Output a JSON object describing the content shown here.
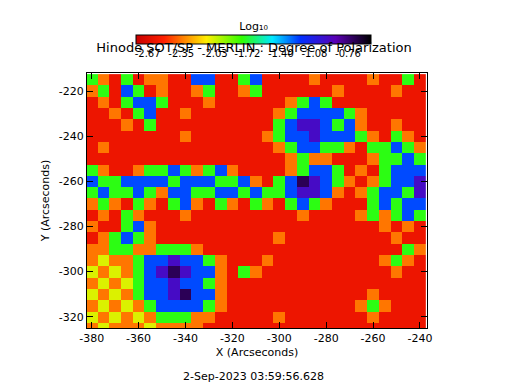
{
  "chart_data": {
    "type": "heatmap",
    "title": "Hinode SOT/SP - MERLIN : Degree of Polarization",
    "xlabel": "X (Arcseconds)",
    "ylabel": "Y (Arcseconds)",
    "annotations": [
      "2-Sep-2023 03:59:56.628"
    ],
    "xlim": [
      -382,
      -237
    ],
    "ylim": [
      -325,
      -212
    ],
    "xticks": [
      -380,
      -360,
      -340,
      -320,
      -300,
      -280,
      -260,
      -240
    ],
    "yticks": [
      -320,
      -300,
      -280,
      -260,
      -240,
      -220
    ],
    "colorbar": {
      "title": "Log₁₀",
      "range": [
        -2.78,
        -0.54
      ],
      "ticks": [
        -2.67,
        -2.35,
        -2.03,
        -1.72,
        {
          "value": -1.4,
          "label": "-1.40"
        },
        -1.08,
        -0.76
      ]
    },
    "x": [
      -380,
      -375,
      -370,
      -365,
      -360,
      -355,
      -350,
      -345,
      -340,
      -335,
      -330,
      -325,
      -320,
      -315,
      -310,
      -305,
      -300,
      -295,
      -290,
      -285,
      -280,
      -275,
      -270,
      -265,
      -260,
      -255,
      -250,
      -245,
      -240
    ],
    "y": [
      -325,
      -320,
      -315,
      -310,
      -305,
      -300,
      -295,
      -290,
      -285,
      -280,
      -275,
      -270,
      -265,
      -260,
      -255,
      -250,
      -245,
      -240,
      -235,
      -230,
      -225,
      -220,
      -215
    ],
    "z": [
      [
        -2.35,
        -2.05,
        -2.35,
        -2.35,
        -2.35,
        -2.05,
        -2.35,
        -2.35,
        -2.35,
        -2.35,
        -2.6,
        -2.6,
        -2.6,
        -2.6,
        -2.6,
        -2.6,
        -2.6,
        -2.6,
        -2.6,
        -2.6,
        -2.6,
        -2.6,
        -2.6,
        -2.6,
        -2.6,
        -2.6,
        -2.6,
        -2.6,
        -2.6
      ],
      [
        -2.05,
        -2.35,
        -2.05,
        -2.35,
        -2.05,
        -2.35,
        -1.75,
        -1.75,
        -1.75,
        -2.35,
        -2.35,
        -2.6,
        -2.6,
        -2.6,
        -2.6,
        -2.6,
        -2.35,
        -2.6,
        -2.6,
        -2.6,
        -2.6,
        -2.6,
        -2.6,
        -2.6,
        -2.35,
        -2.6,
        -2.6,
        -2.6,
        -2.6
      ],
      [
        -2.35,
        -2.05,
        -2.35,
        -2.05,
        -2.35,
        -1.75,
        -1.25,
        -1.25,
        -1.25,
        -1.25,
        -1.75,
        -2.35,
        -2.6,
        -2.6,
        -2.6,
        -2.6,
        -2.6,
        -2.6,
        -2.6,
        -2.6,
        -2.6,
        -2.6,
        -2.6,
        -2.35,
        -1.75,
        -2.35,
        -2.6,
        -2.6,
        -2.6
      ],
      [
        -2.05,
        -2.35,
        -2.05,
        -2.35,
        -1.75,
        -1.25,
        -1.25,
        -0.95,
        -0.7,
        -1.25,
        -1.25,
        -2.35,
        -2.6,
        -2.6,
        -2.6,
        -2.6,
        -2.6,
        -2.6,
        -2.6,
        -2.6,
        -2.6,
        -2.6,
        -2.6,
        -2.6,
        -2.35,
        -2.6,
        -2.6,
        -2.6,
        -2.6
      ],
      [
        -2.35,
        -2.05,
        -2.35,
        -2.05,
        -1.75,
        -1.25,
        -1.25,
        -0.95,
        -1.25,
        -1.25,
        -1.75,
        -2.35,
        -2.6,
        -2.6,
        -2.6,
        -2.6,
        -2.6,
        -2.6,
        -2.6,
        -2.6,
        -2.6,
        -2.6,
        -2.6,
        -2.6,
        -2.6,
        -2.6,
        -2.6,
        -2.6,
        -2.6
      ],
      [
        -2.05,
        -2.35,
        -2.05,
        -2.35,
        -1.75,
        -1.25,
        -0.95,
        -0.7,
        -0.95,
        -1.25,
        -1.25,
        -2.35,
        -2.6,
        -1.75,
        -2.35,
        -2.6,
        -2.6,
        -2.6,
        -2.6,
        -2.6,
        -2.6,
        -2.6,
        -2.6,
        -2.6,
        -2.6,
        -2.6,
        -2.35,
        -2.6,
        -2.6
      ],
      [
        -2.35,
        -2.05,
        -2.35,
        -2.35,
        -1.75,
        -1.25,
        -1.25,
        -0.95,
        -1.25,
        -1.25,
        -1.75,
        -2.35,
        -2.6,
        -2.6,
        -2.6,
        -2.35,
        -2.6,
        -2.6,
        -2.6,
        -2.6,
        -2.6,
        -2.6,
        -2.6,
        -2.6,
        -2.6,
        -2.35,
        -1.75,
        -2.35,
        -2.6
      ],
      [
        -2.35,
        -2.35,
        -1.75,
        -1.75,
        -2.35,
        -2.35,
        -1.75,
        -1.75,
        -1.75,
        -2.35,
        -2.6,
        -2.6,
        -2.6,
        -2.6,
        -2.6,
        -2.6,
        -2.6,
        -2.6,
        -2.6,
        -2.6,
        -2.6,
        -2.6,
        -2.6,
        -2.6,
        -2.6,
        -2.6,
        -2.6,
        -1.75,
        -2.35
      ],
      [
        -2.6,
        -2.35,
        -1.75,
        -1.25,
        -1.75,
        -2.35,
        -2.6,
        -2.6,
        -2.6,
        -2.6,
        -2.6,
        -2.6,
        -2.6,
        -2.6,
        -2.6,
        -2.6,
        -2.35,
        -2.6,
        -2.6,
        -2.6,
        -2.6,
        -2.6,
        -2.6,
        -2.6,
        -2.6,
        -2.6,
        -2.35,
        -2.6,
        -2.6
      ],
      [
        -2.35,
        -2.6,
        -2.6,
        -1.75,
        -1.25,
        -2.35,
        -2.6,
        -2.6,
        -2.6,
        -2.6,
        -2.6,
        -2.6,
        -2.6,
        -2.6,
        -2.6,
        -2.6,
        -2.6,
        -2.6,
        -2.6,
        -2.6,
        -2.6,
        -2.6,
        -2.6,
        -2.6,
        -2.6,
        -2.35,
        -2.6,
        -2.35,
        -2.6
      ],
      [
        -2.6,
        -2.35,
        -2.6,
        -1.75,
        -2.35,
        -2.6,
        -2.6,
        -2.6,
        -2.35,
        -2.6,
        -2.6,
        -2.6,
        -2.6,
        -2.6,
        -2.6,
        -2.6,
        -2.6,
        -2.6,
        -2.35,
        -2.6,
        -2.6,
        -2.6,
        -2.6,
        -2.35,
        -1.75,
        -2.35,
        -1.75,
        -1.25,
        -1.75
      ],
      [
        -2.35,
        -1.75,
        -2.35,
        -2.6,
        -1.75,
        -2.35,
        -2.6,
        -1.75,
        -1.25,
        -2.35,
        -2.6,
        -1.75,
        -2.35,
        -2.6,
        -1.75,
        -2.35,
        -2.6,
        -1.75,
        -1.25,
        -1.75,
        -2.35,
        -2.6,
        -2.6,
        -2.6,
        -1.75,
        -1.25,
        -1.75,
        -1.25,
        -1.25
      ],
      [
        -1.75,
        -1.25,
        -1.75,
        -1.75,
        -1.25,
        -1.75,
        -2.35,
        -1.25,
        -1.25,
        -1.75,
        -1.75,
        -1.25,
        -1.25,
        -1.75,
        -1.25,
        -1.75,
        -1.75,
        -1.25,
        -0.95,
        -0.95,
        -1.25,
        -2.35,
        -2.6,
        -2.35,
        -1.75,
        -1.25,
        -1.25,
        -1.75,
        -0.95
      ],
      [
        -1.25,
        -1.75,
        -1.75,
        -1.25,
        -1.25,
        -1.25,
        -1.25,
        -1.75,
        -1.25,
        -1.25,
        -1.25,
        -1.75,
        -1.75,
        -1.25,
        -2.35,
        -2.6,
        -1.75,
        -1.25,
        -0.7,
        -0.95,
        -1.25,
        -1.75,
        -2.35,
        -2.6,
        -2.35,
        -1.75,
        -1.25,
        -1.25,
        -0.95
      ],
      [
        -1.75,
        -2.35,
        -2.6,
        -2.6,
        -2.35,
        -1.75,
        -1.75,
        -1.25,
        -1.75,
        -2.35,
        -1.75,
        -1.25,
        -2.35,
        -2.6,
        -2.6,
        -2.6,
        -2.6,
        -2.35,
        -1.75,
        -1.25,
        -1.25,
        -1.75,
        -2.6,
        -2.35,
        -2.6,
        -1.75,
        -1.25,
        -1.25,
        -1.25
      ],
      [
        -2.6,
        -2.6,
        -2.6,
        -2.6,
        -2.6,
        -2.6,
        -2.6,
        -2.6,
        -2.6,
        -2.6,
        -2.6,
        -2.6,
        -2.6,
        -2.6,
        -2.6,
        -2.6,
        -2.6,
        -2.35,
        -1.75,
        -2.35,
        -2.35,
        -2.6,
        -2.6,
        -2.6,
        -2.35,
        -1.75,
        -1.75,
        -1.25,
        -1.75
      ],
      [
        -2.6,
        -2.35,
        -2.6,
        -2.6,
        -2.6,
        -2.6,
        -2.6,
        -2.6,
        -2.6,
        -2.6,
        -2.6,
        -2.6,
        -2.6,
        -2.6,
        -2.6,
        -2.6,
        -2.35,
        -1.75,
        -1.25,
        -1.25,
        -1.75,
        -1.75,
        -2.35,
        -2.6,
        -1.75,
        -1.75,
        -1.25,
        -1.75,
        -2.35
      ],
      [
        -2.6,
        -2.6,
        -2.6,
        -2.6,
        -2.6,
        -2.6,
        -2.6,
        -2.6,
        -2.35,
        -2.6,
        -2.6,
        -2.6,
        -2.6,
        -2.6,
        -2.6,
        -2.35,
        -1.75,
        -1.25,
        -1.25,
        -0.95,
        -1.25,
        -1.25,
        -1.25,
        -1.75,
        -2.35,
        -2.6,
        -1.75,
        -2.35,
        -2.6
      ],
      [
        -2.6,
        -2.6,
        -2.6,
        -2.35,
        -2.6,
        -1.75,
        -2.6,
        -2.6,
        -2.6,
        -2.6,
        -2.6,
        -2.6,
        -2.6,
        -2.6,
        -2.6,
        -2.6,
        -1.75,
        -1.25,
        -0.95,
        -0.95,
        -1.25,
        -1.75,
        -1.25,
        -2.35,
        -2.6,
        -2.6,
        -2.35,
        -2.6,
        -2.6
      ],
      [
        -2.6,
        -2.6,
        -2.35,
        -2.6,
        -1.75,
        -1.25,
        -2.6,
        -2.6,
        -2.35,
        -2.6,
        -2.6,
        -2.6,
        -2.6,
        -2.6,
        -2.6,
        -2.6,
        -2.35,
        -1.75,
        -1.25,
        -1.25,
        -1.25,
        -1.25,
        -1.75,
        -2.35,
        -2.6,
        -2.6,
        -2.6,
        -2.6,
        -2.6
      ],
      [
        -2.6,
        -2.35,
        -2.6,
        -1.75,
        -1.25,
        -1.25,
        -1.75,
        -2.6,
        -2.6,
        -2.6,
        -2.35,
        -2.6,
        -2.6,
        -2.6,
        -2.6,
        -2.6,
        -2.6,
        -2.35,
        -1.75,
        -1.25,
        -1.75,
        -2.6,
        -2.6,
        -2.6,
        -2.6,
        -2.6,
        -2.6,
        -2.6,
        -2.6
      ],
      [
        -2.35,
        -1.75,
        -2.6,
        -1.25,
        -1.75,
        -2.6,
        -2.35,
        -2.6,
        -2.6,
        -2.35,
        -1.75,
        -2.6,
        -2.6,
        -2.35,
        -1.75,
        -2.6,
        -2.6,
        -2.6,
        -2.6,
        -2.6,
        -2.6,
        -2.35,
        -2.6,
        -2.6,
        -2.6,
        -2.6,
        -2.35,
        -2.6,
        -2.6
      ],
      [
        -1.75,
        -2.35,
        -2.6,
        -1.75,
        -2.6,
        -2.35,
        -2.35,
        -2.6,
        -2.6,
        -1.25,
        -1.25,
        -2.6,
        -2.6,
        -1.75,
        -1.25,
        -2.6,
        -2.6,
        -2.6,
        -2.6,
        -2.35,
        -2.6,
        -2.6,
        -2.6,
        -2.6,
        -2.35,
        -2.6,
        -2.6,
        -1.75,
        -2.6
      ]
    ]
  }
}
